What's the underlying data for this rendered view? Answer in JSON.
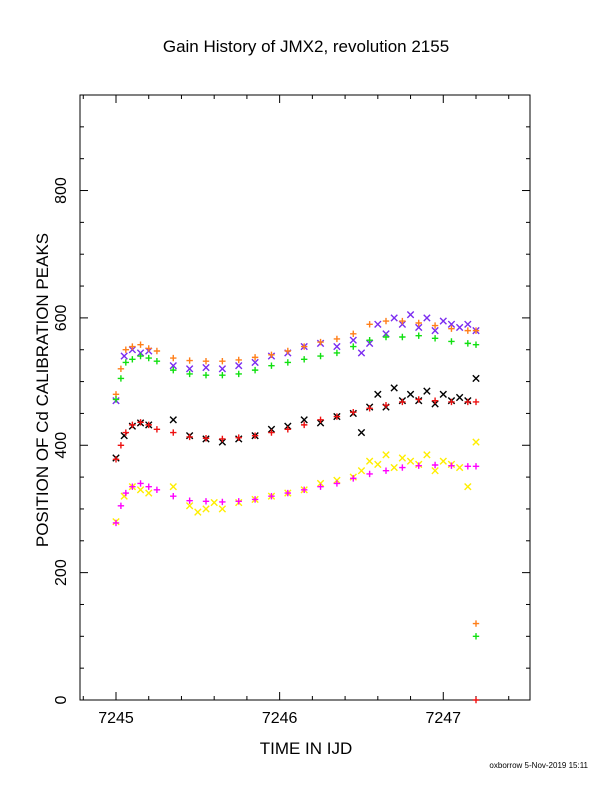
{
  "chart_data": {
    "type": "scatter",
    "title": "Gain History of JMX2, revolution 2155",
    "xlabel": "TIME IN IJD",
    "ylabel": "POSITION OF Cd CALIBRATION PEAKS",
    "xlim": [
      7244.78,
      7247.53
    ],
    "ylim": [
      0,
      950
    ],
    "x_ticks": [
      7245,
      7246,
      7247
    ],
    "x_tick_labels": [
      "7245",
      "7246",
      "7247"
    ],
    "y_ticks": [
      0,
      200,
      400,
      600,
      800
    ],
    "y_tick_labels": [
      "0",
      "200",
      "400",
      "600",
      "800"
    ],
    "grid": false,
    "legend": "none",
    "footer": "oxborrow  5-Nov-2019 15:11",
    "series": [
      {
        "color": "#7b2cf0",
        "marker": "x",
        "x": [
          7245.0,
          7245.05,
          7245.1,
          7245.15,
          7245.2,
          7245.35,
          7245.45,
          7245.55,
          7245.65,
          7245.75,
          7245.85,
          7245.95,
          7246.05,
          7246.15,
          7246.25,
          7246.35,
          7246.45,
          7246.5,
          7246.55,
          7246.6,
          7246.65,
          7246.7,
          7246.75,
          7246.8,
          7246.85,
          7246.9,
          7246.95,
          7247.0,
          7247.05,
          7247.1,
          7247.15,
          7247.2
        ],
        "y": [
          470,
          540,
          550,
          545,
          548,
          525,
          520,
          522,
          520,
          525,
          530,
          540,
          545,
          555,
          560,
          555,
          565,
          545,
          560,
          590,
          575,
          600,
          590,
          605,
          585,
          600,
          580,
          595,
          590,
          585,
          590,
          580
        ]
      },
      {
        "color": "#ff7f1a",
        "marker": "+",
        "x": [
          7245.0,
          7245.03,
          7245.06,
          7245.1,
          7245.15,
          7245.2,
          7245.25,
          7245.35,
          7245.45,
          7245.55,
          7245.65,
          7245.75,
          7245.85,
          7245.95,
          7246.05,
          7246.15,
          7246.25,
          7246.35,
          7246.45,
          7246.55,
          7246.65,
          7246.75,
          7246.85,
          7246.95,
          7247.05,
          7247.15,
          7247.2
        ],
        "y": [
          480,
          520,
          550,
          555,
          558,
          552,
          548,
          537,
          533,
          532,
          532,
          534,
          538,
          542,
          548,
          555,
          562,
          567,
          575,
          590,
          595,
          595,
          592,
          588,
          583,
          580,
          580
        ]
      },
      {
        "color": "#10e010",
        "marker": "+",
        "x": [
          7245.0,
          7245.03,
          7245.06,
          7245.1,
          7245.15,
          7245.2,
          7245.25,
          7245.35,
          7245.45,
          7245.55,
          7245.65,
          7245.75,
          7245.85,
          7245.95,
          7246.05,
          7246.15,
          7246.25,
          7246.35,
          7246.45,
          7246.55,
          7246.65,
          7246.75,
          7246.85,
          7246.95,
          7247.05,
          7247.15,
          7247.2
        ],
        "y": [
          472,
          505,
          530,
          535,
          540,
          537,
          532,
          518,
          512,
          510,
          510,
          512,
          518,
          525,
          530,
          535,
          540,
          545,
          555,
          565,
          570,
          570,
          572,
          568,
          563,
          560,
          558
        ]
      },
      {
        "color": "#000000",
        "marker": "x",
        "x": [
          7245.0,
          7245.05,
          7245.1,
          7245.15,
          7245.2,
          7245.35,
          7245.45,
          7245.55,
          7245.65,
          7245.75,
          7245.85,
          7245.95,
          7246.05,
          7246.15,
          7246.25,
          7246.35,
          7246.45,
          7246.5,
          7246.55,
          7246.6,
          7246.65,
          7246.7,
          7246.75,
          7246.8,
          7246.85,
          7246.9,
          7246.95,
          7247.0,
          7247.05,
          7247.1,
          7247.15,
          7247.2
        ],
        "y": [
          380,
          415,
          430,
          435,
          432,
          440,
          415,
          410,
          405,
          410,
          415,
          425,
          430,
          440,
          435,
          445,
          450,
          420,
          460,
          480,
          460,
          490,
          470,
          480,
          470,
          485,
          465,
          480,
          470,
          475,
          470,
          505
        ]
      },
      {
        "color": "#ee1111",
        "marker": "+",
        "x": [
          7245.0,
          7245.03,
          7245.06,
          7245.1,
          7245.15,
          7245.2,
          7245.25,
          7245.35,
          7245.45,
          7245.55,
          7245.65,
          7245.75,
          7245.85,
          7245.95,
          7246.05,
          7246.15,
          7246.25,
          7246.35,
          7246.45,
          7246.55,
          7246.65,
          7246.75,
          7246.85,
          7246.95,
          7247.05,
          7247.15,
          7247.2
        ],
        "y": [
          378,
          400,
          420,
          432,
          436,
          432,
          425,
          420,
          413,
          411,
          410,
          412,
          415,
          420,
          425,
          432,
          440,
          445,
          452,
          458,
          463,
          468,
          472,
          470,
          468,
          468,
          468
        ]
      },
      {
        "color": "#ffee00",
        "marker": "x",
        "x": [
          7245.0,
          7245.05,
          7245.1,
          7245.15,
          7245.2,
          7245.35,
          7245.45,
          7245.5,
          7245.55,
          7245.6,
          7245.65,
          7245.75,
          7245.85,
          7245.95,
          7246.05,
          7246.15,
          7246.25,
          7246.35,
          7246.45,
          7246.5,
          7246.55,
          7246.6,
          7246.65,
          7246.7,
          7246.75,
          7246.8,
          7246.85,
          7246.9,
          7246.95,
          7247.0,
          7247.05,
          7247.1,
          7247.15,
          7247.2
        ],
        "y": [
          280,
          320,
          335,
          330,
          325,
          335,
          305,
          295,
          300,
          310,
          300,
          310,
          315,
          320,
          325,
          330,
          340,
          345,
          350,
          360,
          375,
          370,
          385,
          365,
          380,
          375,
          370,
          385,
          360,
          375,
          370,
          365,
          335,
          405
        ]
      },
      {
        "color": "#ff00ff",
        "marker": "+",
        "x": [
          7245.0,
          7245.03,
          7245.06,
          7245.1,
          7245.15,
          7245.2,
          7245.25,
          7245.35,
          7245.45,
          7245.55,
          7245.65,
          7245.75,
          7245.85,
          7245.95,
          7246.05,
          7246.15,
          7246.25,
          7246.35,
          7246.45,
          7246.55,
          7246.65,
          7246.75,
          7246.85,
          7246.95,
          7247.05,
          7247.15,
          7247.2
        ],
        "y": [
          278,
          305,
          325,
          335,
          340,
          335,
          330,
          320,
          313,
          312,
          311,
          312,
          315,
          320,
          325,
          330,
          335,
          340,
          348,
          355,
          360,
          365,
          368,
          369,
          368,
          367,
          367
        ]
      },
      {
        "color": "#ff7f1a",
        "marker": "+",
        "x": [
          7247.2
        ],
        "y": [
          120
        ]
      },
      {
        "color": "#10e010",
        "marker": "+",
        "x": [
          7247.2
        ],
        "y": [
          100
        ]
      },
      {
        "color": "#ee1111",
        "marker": "+",
        "x": [
          7247.2
        ],
        "y": [
          0
        ]
      }
    ]
  }
}
